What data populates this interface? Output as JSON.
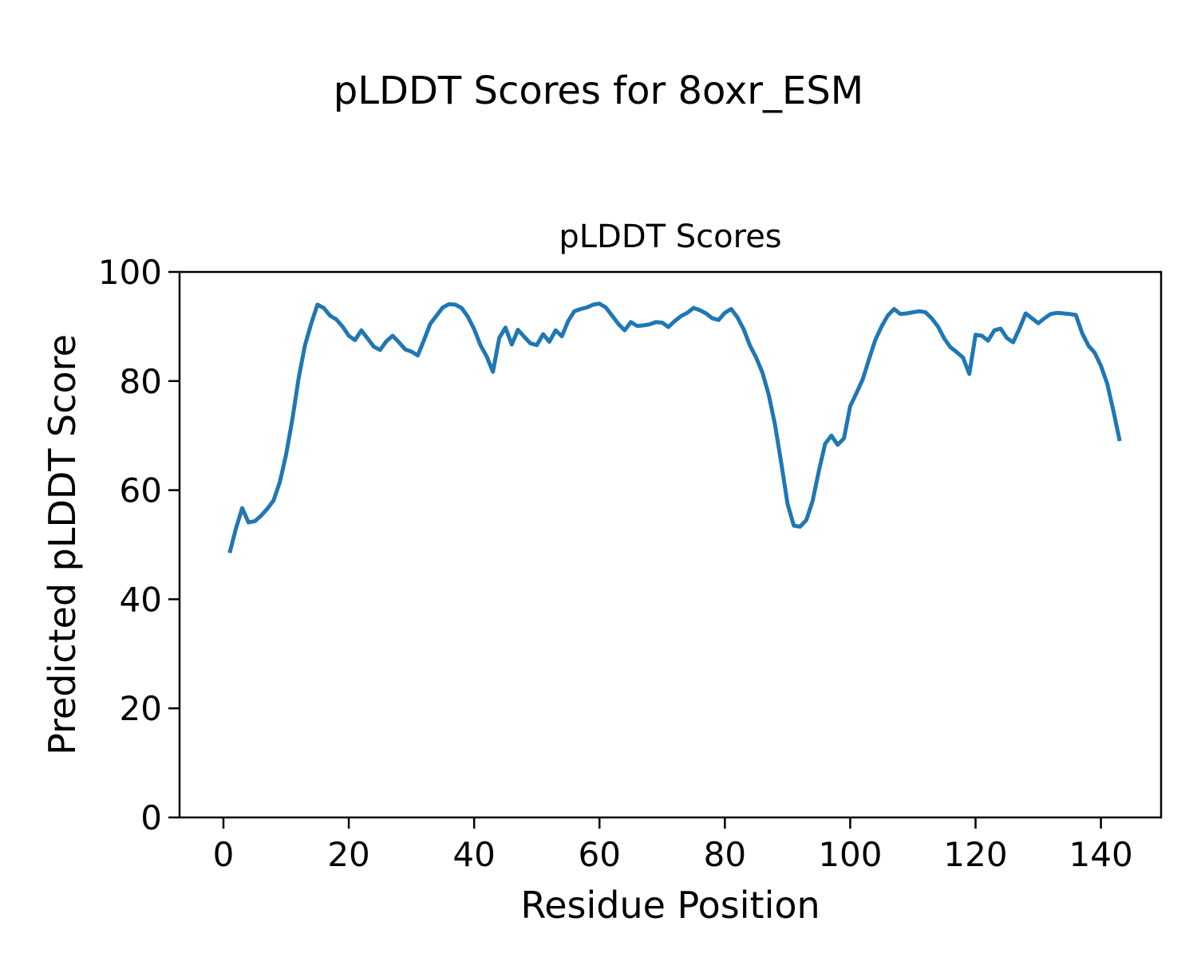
{
  "figure": {
    "suptitle": "pLDDT Scores for 8oxr_ESM",
    "background_color": "#ffffff",
    "text_color": "#000000"
  },
  "chart_data": {
    "type": "line",
    "title": "pLDDT Scores",
    "xlabel": "Residue Position",
    "ylabel": "Predicted pLDDT Score",
    "x_ticks": [
      0,
      20,
      40,
      60,
      80,
      100,
      120,
      140
    ],
    "y_ticks": [
      0,
      20,
      40,
      60,
      80,
      100
    ],
    "xlim": [
      -7,
      149.6
    ],
    "ylim": [
      0,
      100
    ],
    "grid": false,
    "legend": "none",
    "line_color": "#1f77b4",
    "series": [
      {
        "name": "pLDDT",
        "x_start": 1,
        "x_step": 1,
        "values": [
          48.5,
          53.0,
          56.7,
          54.1,
          54.3,
          55.3,
          56.6,
          58.1,
          61.5,
          66.5,
          73.0,
          80.5,
          86.5,
          90.5,
          94.0,
          93.4,
          92.0,
          91.3,
          90.0,
          88.3,
          87.5,
          89.3,
          87.8,
          86.3,
          85.7,
          87.3,
          88.3,
          87.1,
          85.8,
          85.4,
          84.7,
          87.5,
          90.5,
          92.0,
          93.5,
          94.1,
          94.0,
          93.4,
          91.8,
          89.5,
          86.6,
          84.5,
          81.7,
          87.9,
          89.8,
          86.7,
          89.4,
          88.1,
          86.9,
          86.6,
          88.6,
          87.2,
          89.3,
          88.2,
          91.0,
          92.8,
          93.2,
          93.5,
          94.0,
          94.2,
          93.5,
          92.0,
          90.5,
          89.3,
          90.8,
          90.1,
          90.2,
          90.4,
          90.8,
          90.7,
          89.9,
          91.0,
          91.9,
          92.5,
          93.4,
          93.0,
          92.4,
          91.5,
          91.2,
          92.5,
          93.2,
          91.7,
          89.5,
          86.5,
          84.3,
          81.5,
          77.5,
          72.0,
          65.0,
          57.5,
          53.5,
          53.3,
          54.5,
          58.0,
          63.5,
          68.5,
          70.0,
          68.3,
          69.5,
          75.4,
          77.8,
          80.3,
          84.0,
          87.5,
          90.0,
          92.0,
          93.2,
          92.3,
          92.4,
          92.6,
          92.8,
          92.6,
          91.5,
          90.0,
          87.8,
          86.2,
          85.3,
          84.3,
          81.3,
          88.5,
          88.3,
          87.4,
          89.3,
          89.6,
          87.9,
          87.1,
          89.6,
          92.4,
          91.5,
          90.6,
          91.5,
          92.3,
          92.5,
          92.4,
          92.3,
          92.1,
          88.8,
          86.5,
          85.2,
          82.8,
          79.5,
          74.5,
          69.0
        ]
      }
    ]
  }
}
